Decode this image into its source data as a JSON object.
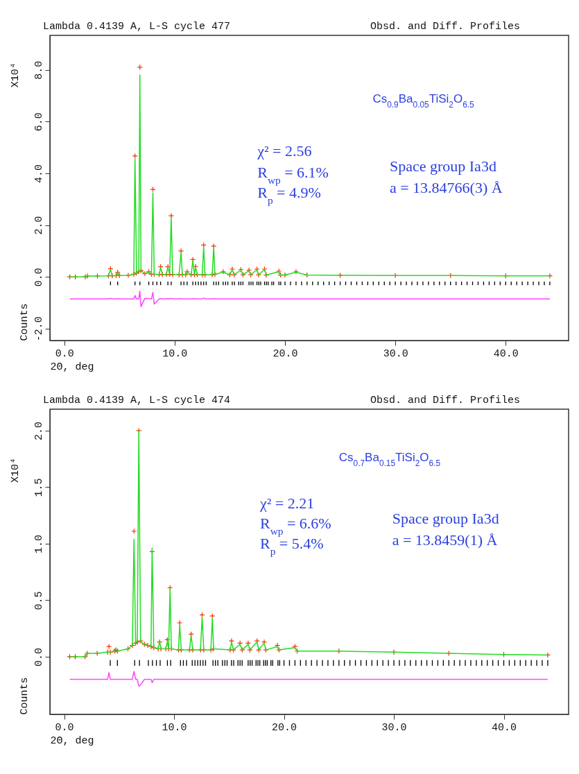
{
  "chart_data": [
    {
      "type": "line",
      "title": "Lambda 0.4139 A, L-S cycle  477",
      "subtitle": "Obsd. and Diff. Profiles",
      "xlabel": "2Θ, deg",
      "ylabel": "Counts",
      "annotations": [
        "Cs$_{0.9}$Ba$_{0.05}$TiSi$_{2}$O$_{6.5}$",
        "χ² = 2.56",
        "R$_{wp}$ = 6.1%",
        "R$_{p}$ = 4.9%",
        "Space group Ia3d",
        "a = 13.84766(3) Å",
        "X10⁴"
      ],
      "xlim": [
        -1.3,
        45.7
      ],
      "xticks": [
        {
          "value": 0,
          "label": "0.0"
        },
        {
          "value": 10,
          "label": "10.0"
        },
        {
          "value": 20,
          "label": "20.0"
        },
        {
          "value": 30,
          "label": "30.0"
        },
        {
          "value": 40,
          "label": "40.0"
        }
      ],
      "ylim": [
        -2.46,
        9.33
      ],
      "yticks": [
        {
          "value": -2,
          "label": "-2.0"
        },
        {
          "value": 0,
          "label": "0.0"
        },
        {
          "value": 2,
          "label": "2.0"
        },
        {
          "value": 4,
          "label": "4.0"
        },
        {
          "value": 6,
          "label": "6.0"
        },
        {
          "value": 8,
          "label": "8.0"
        }
      ],
      "x": [
        0.5,
        1.0,
        1.9,
        2.1,
        3.0,
        4.0,
        4.19,
        4.35,
        4.7,
        4.84,
        5.0,
        5.8,
        6.3,
        6.41,
        6.55,
        6.75,
        6.85,
        6.95,
        7.3,
        7.66,
        7.9,
        8.03,
        8.15,
        8.6,
        8.73,
        8.9,
        9.25,
        9.39,
        9.55,
        9.69,
        9.82,
        10.4,
        10.58,
        10.7,
        11.0,
        11.13,
        11.5,
        11.65,
        11.8,
        11.9,
        12.05,
        12.5,
        12.63,
        12.75,
        13.4,
        13.54,
        13.65,
        14.4,
        15.0,
        15.22,
        15.4,
        16.0,
        16.2,
        16.74,
        16.9,
        17.46,
        17.6,
        18.15,
        18.3,
        19.45,
        19.6,
        20.0,
        21.0,
        22,
        25,
        30,
        35,
        40,
        44.0
      ],
      "series": [
        {
          "type": "scatter",
          "marker": "cross",
          "color": "#ff2a00",
          "values": [
            0,
            0,
            0,
            0.03,
            0.03,
            0.04,
            0.31,
            0.04,
            0.05,
            0.18,
            0.05,
            0.06,
            0.1,
            4.67,
            0.15,
            0.2,
            8.1,
            0.25,
            0.12,
            0.2,
            0.1,
            3.38,
            0.1,
            0.09,
            0.39,
            0.09,
            0.09,
            0.39,
            0.09,
            2.36,
            0.09,
            0.08,
            1.0,
            0.08,
            0.08,
            0.2,
            0.08,
            0.67,
            0.08,
            0.4,
            0.08,
            0.08,
            1.23,
            0.08,
            0.08,
            1.19,
            0.1,
            0.2,
            0.08,
            0.3,
            0.08,
            0.28,
            0.08,
            0.26,
            0.08,
            0.3,
            0.08,
            0.3,
            0.07,
            0.22,
            0.07,
            0.07,
            0.2,
            0.07,
            0.06,
            0.05,
            0.05,
            0.04,
            0.04
          ]
        },
        {
          "type": "line",
          "line_style": "solid",
          "color": "#22dd22",
          "values": [
            0,
            0,
            0,
            0.03,
            0.03,
            0.04,
            0.28,
            0.04,
            0.05,
            0.17,
            0.05,
            0.06,
            0.1,
            4.55,
            0.14,
            0.2,
            7.8,
            0.25,
            0.12,
            0.18,
            0.1,
            3.25,
            0.1,
            0.09,
            0.36,
            0.09,
            0.09,
            0.38,
            0.09,
            2.3,
            0.09,
            0.08,
            0.95,
            0.08,
            0.08,
            0.18,
            0.08,
            0.63,
            0.08,
            0.37,
            0.08,
            0.08,
            1.15,
            0.08,
            0.08,
            1.15,
            0.1,
            0.18,
            0.08,
            0.28,
            0.08,
            0.26,
            0.08,
            0.24,
            0.08,
            0.28,
            0.08,
            0.28,
            0.07,
            0.2,
            0.07,
            0.07,
            0.18,
            0.07,
            0.06,
            0.05,
            0.05,
            0.04,
            0.04
          ]
        },
        {
          "type": "line",
          "line_style": "solid",
          "color": "#ff44ff",
          "values": [
            -0.85,
            -0.85,
            -0.85,
            -0.85,
            -0.85,
            -0.85,
            -0.83,
            -0.85,
            -0.85,
            -0.84,
            -0.85,
            -0.85,
            -0.85,
            -0.72,
            -0.85,
            -0.85,
            -0.55,
            -1.15,
            -0.83,
            -0.84,
            -0.85,
            -0.6,
            -1.05,
            -0.85,
            -0.84,
            -0.85,
            -0.85,
            -0.84,
            -0.85,
            -0.83,
            -0.85,
            -0.85,
            -0.84,
            -0.85,
            -0.85,
            -0.85,
            -0.85,
            -0.84,
            -0.85,
            -0.85,
            -0.85,
            -0.85,
            -0.82,
            -0.85,
            -0.85,
            -0.84,
            -0.85,
            -0.85,
            -0.85,
            -0.85,
            -0.85,
            -0.85,
            -0.85,
            -0.85,
            -0.85,
            -0.85,
            -0.85,
            -0.85,
            -0.85,
            -0.85,
            -0.85,
            -0.85,
            -0.85,
            -0.85,
            -0.85,
            -0.85,
            -0.85,
            -0.85,
            -0.85
          ]
        },
        {
          "type": "bar",
          "color": "#000000",
          "x": [
            4.19,
            4.84,
            6.41,
            6.85,
            7.66,
            8.03,
            8.39,
            8.73,
            9.39,
            9.69,
            10.58,
            10.84,
            11.13,
            11.65,
            11.9,
            12.15,
            12.39,
            12.63,
            12.86,
            13.54,
            13.76,
            13.98,
            14.4,
            14.62,
            14.82,
            15.22,
            15.42,
            15.81,
            16.0,
            16.19,
            16.74,
            16.92,
            17.1,
            17.46,
            17.63,
            17.8,
            18.15,
            18.32,
            18.48,
            18.81,
            18.97,
            19.45,
            19.61,
            20.0,
            20.5,
            21.0,
            21.5,
            22.0,
            22.5,
            23.0,
            23.5,
            24.0,
            24.5,
            25.0,
            25.5,
            26.0,
            26.5,
            27.0,
            27.5,
            28.0,
            28.5,
            29.0,
            29.5,
            30.0,
            30.5,
            31.0,
            31.5,
            32.0,
            32.5,
            33.0,
            33.5,
            34.0,
            34.5,
            35.0,
            35.5,
            36.0,
            36.5,
            37.0,
            37.5,
            38.0,
            38.5,
            39.0,
            39.5,
            40.0,
            40.5,
            41.0,
            41.5,
            42.0,
            42.5,
            43.0,
            43.5,
            44.0
          ],
          "base": [
            -0.32,
            -0.32,
            -0.32,
            -0.32,
            -0.32,
            -0.32,
            -0.32,
            -0.32,
            -0.32,
            -0.32,
            -0.32,
            -0.32,
            -0.32,
            -0.32,
            -0.32,
            -0.32,
            -0.32,
            -0.32,
            -0.32,
            -0.32,
            -0.32,
            -0.32,
            -0.32,
            -0.32,
            -0.32,
            -0.32,
            -0.32,
            -0.32,
            -0.32,
            -0.32,
            -0.32,
            -0.32,
            -0.32,
            -0.32,
            -0.32,
            -0.32,
            -0.32,
            -0.32,
            -0.32,
            -0.32,
            -0.32,
            -0.32,
            -0.32,
            -0.32,
            -0.32,
            -0.32,
            -0.32,
            -0.32,
            -0.32,
            -0.32,
            -0.32,
            -0.32,
            -0.32,
            -0.32,
            -0.32,
            -0.32,
            -0.32,
            -0.32,
            -0.32,
            -0.32,
            -0.32,
            -0.32,
            -0.32,
            -0.32,
            -0.32,
            -0.32,
            -0.32,
            -0.32,
            -0.32,
            -0.32,
            -0.32,
            -0.32,
            -0.32,
            -0.32,
            -0.32,
            -0.32,
            -0.32,
            -0.32,
            -0.32,
            -0.32,
            -0.32,
            -0.32,
            -0.32,
            -0.32,
            -0.32,
            -0.32,
            -0.32,
            -0.32,
            -0.32,
            -0.32,
            -0.32,
            -0.32
          ],
          "values": [
            0.14,
            0.14,
            0.14,
            0.14,
            0.14,
            0.14,
            0.14,
            0.14,
            0.14,
            0.14,
            0.14,
            0.14,
            0.14,
            0.14,
            0.14,
            0.14,
            0.14,
            0.14,
            0.14,
            0.14,
            0.14,
            0.14,
            0.14,
            0.14,
            0.14,
            0.14,
            0.14,
            0.14,
            0.14,
            0.14,
            0.14,
            0.14,
            0.14,
            0.14,
            0.14,
            0.14,
            0.14,
            0.14,
            0.14,
            0.14,
            0.14,
            0.14,
            0.14,
            0.14,
            0.14,
            0.14,
            0.14,
            0.14,
            0.14,
            0.14,
            0.14,
            0.14,
            0.14,
            0.14,
            0.14,
            0.14,
            0.14,
            0.14,
            0.14,
            0.14,
            0.14,
            0.14,
            0.14,
            0.14,
            0.14,
            0.14,
            0.14,
            0.14,
            0.14,
            0.14,
            0.14,
            0.14,
            0.14,
            0.14,
            0.14,
            0.14,
            0.14,
            0.14,
            0.14,
            0.14,
            0.14,
            0.14,
            0.14,
            0.14,
            0.14,
            0.14,
            0.14,
            0.14,
            0.14,
            0.14,
            0.14,
            0.14
          ]
        }
      ]
    },
    {
      "type": "line",
      "title": "Lambda 0.4139 A, L-S cycle  474",
      "subtitle": "Obsd. and Diff. Profiles",
      "xlabel": "2Θ, deg",
      "ylabel": "Counts",
      "annotations": [
        "Cs$_{0.7}$Ba$_{0.15}$TiSi$_{2}$O$_{6.5}$",
        "χ² = 2.21",
        "R$_{wp}$ = 6.6%",
        "R$_{p}$ = 5.4%",
        "Space group Ia3d",
        "a = 13.8459(1) Å",
        "X10⁴"
      ],
      "xlim": [
        -1.3,
        45.9
      ],
      "xticks": [
        {
          "value": 0,
          "label": "0.0"
        },
        {
          "value": 10,
          "label": "10.0"
        },
        {
          "value": 20,
          "label": "20.0"
        },
        {
          "value": 30,
          "label": "30.0"
        },
        {
          "value": 40,
          "label": "40.0"
        }
      ],
      "ylim": [
        -0.51,
        2.19
      ],
      "yticks": [
        {
          "value": 0,
          "label": "0.0"
        },
        {
          "value": 0.5,
          "label": "0.5"
        },
        {
          "value": 1,
          "label": "1.0"
        },
        {
          "value": 1.5,
          "label": "1.5"
        },
        {
          "value": 2,
          "label": "2.0"
        }
      ],
      "x": [
        0.5,
        1.0,
        1.9,
        2.1,
        3.0,
        3.95,
        4.07,
        4.2,
        4.6,
        4.7,
        4.85,
        5.8,
        6.2,
        6.35,
        6.5,
        6.65,
        6.79,
        6.95,
        7.3,
        7.6,
        7.9,
        8.0,
        8.15,
        8.55,
        8.68,
        8.8,
        9.25,
        9.38,
        9.5,
        9.63,
        9.75,
        10.4,
        10.51,
        10.65,
        11.4,
        11.55,
        11.7,
        12.4,
        12.55,
        12.7,
        13.35,
        13.48,
        13.6,
        15.1,
        15.23,
        15.4,
        16.0,
        16.2,
        16.74,
        16.9,
        17.55,
        17.7,
        18.2,
        18.35,
        19.4,
        19.55,
        21.0,
        21.2,
        25,
        30,
        35,
        40,
        44.0
      ],
      "series": [
        {
          "type": "scatter",
          "marker": "cross",
          "color": "#ff2a00",
          "values": [
            0,
            0,
            0,
            0.03,
            0.03,
            0.04,
            0.09,
            0.04,
            0.05,
            0.06,
            0.05,
            0.07,
            0.1,
            1.11,
            0.12,
            0.13,
            2.0,
            0.14,
            0.11,
            0.1,
            0.09,
            0.93,
            0.08,
            0.07,
            0.13,
            0.07,
            0.07,
            0.15,
            0.07,
            0.61,
            0.07,
            0.06,
            0.3,
            0.06,
            0.06,
            0.2,
            0.06,
            0.06,
            0.37,
            0.06,
            0.06,
            0.36,
            0.07,
            0.06,
            0.14,
            0.06,
            0.12,
            0.06,
            0.12,
            0.06,
            0.14,
            0.06,
            0.13,
            0.06,
            0.1,
            0.06,
            0.09,
            0.05,
            0.05,
            0.04,
            0.03,
            0.02,
            0.015
          ]
        },
        {
          "type": "line",
          "line_style": "solid",
          "color": "#22dd22",
          "values": [
            0,
            0,
            0,
            0.03,
            0.03,
            0.04,
            0.04,
            0.04,
            0.05,
            0.07,
            0.05,
            0.07,
            0.1,
            1.04,
            0.12,
            0.13,
            2.0,
            0.13,
            0.11,
            0.1,
            0.09,
            0.96,
            0.08,
            0.07,
            0.14,
            0.07,
            0.07,
            0.13,
            0.07,
            0.6,
            0.07,
            0.06,
            0.28,
            0.06,
            0.06,
            0.19,
            0.06,
            0.06,
            0.35,
            0.06,
            0.06,
            0.34,
            0.07,
            0.06,
            0.13,
            0.06,
            0.11,
            0.06,
            0.11,
            0.06,
            0.13,
            0.06,
            0.12,
            0.06,
            0.09,
            0.06,
            0.08,
            0.05,
            0.05,
            0.04,
            0.03,
            0.02,
            0.015
          ]
        },
        {
          "type": "line",
          "line_style": "solid",
          "color": "#ff44ff",
          "values": [
            -0.2,
            -0.2,
            -0.2,
            -0.2,
            -0.2,
            -0.2,
            -0.14,
            -0.2,
            -0.2,
            -0.2,
            -0.2,
            -0.2,
            -0.2,
            -0.13,
            -0.2,
            -0.2,
            -0.26,
            -0.25,
            -0.2,
            -0.2,
            -0.2,
            -0.23,
            -0.2,
            -0.2,
            -0.2,
            -0.2,
            -0.2,
            -0.2,
            -0.2,
            -0.2,
            -0.2,
            -0.2,
            -0.2,
            -0.2,
            -0.2,
            -0.2,
            -0.2,
            -0.2,
            -0.2,
            -0.2,
            -0.2,
            -0.2,
            -0.2,
            -0.2,
            -0.2,
            -0.2,
            -0.2,
            -0.2,
            -0.2,
            -0.2,
            -0.2,
            -0.2,
            -0.2,
            -0.2,
            -0.2,
            -0.2,
            -0.2,
            -0.2,
            -0.2,
            -0.2,
            -0.2,
            -0.2,
            -0.2
          ]
        },
        {
          "type": "bar",
          "color": "#000000",
          "x": [
            4.19,
            4.84,
            6.41,
            6.85,
            7.66,
            8.03,
            8.39,
            8.73,
            9.39,
            9.69,
            10.58,
            10.84,
            11.13,
            11.65,
            11.9,
            12.15,
            12.39,
            12.63,
            12.86,
            13.54,
            13.76,
            13.98,
            14.4,
            14.62,
            14.82,
            15.22,
            15.42,
            15.81,
            16.0,
            16.19,
            16.74,
            16.92,
            17.1,
            17.46,
            17.63,
            17.8,
            18.15,
            18.32,
            18.48,
            18.81,
            18.97,
            19.45,
            19.61,
            20.0,
            20.5,
            21.0,
            21.5,
            22.0,
            22.5,
            23.0,
            23.5,
            24.0,
            24.5,
            25.0,
            25.5,
            26.0,
            26.5,
            27.0,
            27.5,
            28.0,
            28.5,
            29.0,
            29.5,
            30.0,
            30.5,
            31.0,
            31.5,
            32.0,
            32.5,
            33.0,
            33.5,
            34.0,
            34.5,
            35.0,
            35.5,
            36.0,
            36.5,
            37.0,
            37.5,
            38.0,
            38.5,
            39.0,
            39.5,
            40.0,
            40.5,
            41.0,
            41.5,
            42.0,
            42.5,
            43.0,
            43.5,
            44.0
          ],
          "base": [
            -0.08,
            -0.08,
            -0.08,
            -0.08,
            -0.08,
            -0.08,
            -0.08,
            -0.08,
            -0.08,
            -0.08,
            -0.08,
            -0.08,
            -0.08,
            -0.08,
            -0.08,
            -0.08,
            -0.08,
            -0.08,
            -0.08,
            -0.08,
            -0.08,
            -0.08,
            -0.08,
            -0.08,
            -0.08,
            -0.08,
            -0.08,
            -0.08,
            -0.08,
            -0.08,
            -0.08,
            -0.08,
            -0.08,
            -0.08,
            -0.08,
            -0.08,
            -0.08,
            -0.08,
            -0.08,
            -0.08,
            -0.08,
            -0.08,
            -0.08,
            -0.08,
            -0.08,
            -0.08,
            -0.08,
            -0.08,
            -0.08,
            -0.08,
            -0.08,
            -0.08,
            -0.08,
            -0.08,
            -0.08,
            -0.08,
            -0.08,
            -0.08,
            -0.08,
            -0.08,
            -0.08,
            -0.08,
            -0.08,
            -0.08,
            -0.08,
            -0.08,
            -0.08,
            -0.08,
            -0.08,
            -0.08,
            -0.08,
            -0.08,
            -0.08,
            -0.08,
            -0.08,
            -0.08,
            -0.08,
            -0.08,
            -0.08,
            -0.08,
            -0.08,
            -0.08,
            -0.08,
            -0.08,
            -0.08,
            -0.08,
            -0.08,
            -0.08,
            -0.08,
            -0.08,
            -0.08,
            -0.08
          ],
          "values": [
            0.05,
            0.05,
            0.05,
            0.05,
            0.05,
            0.05,
            0.05,
            0.05,
            0.05,
            0.05,
            0.05,
            0.05,
            0.05,
            0.05,
            0.05,
            0.05,
            0.05,
            0.05,
            0.05,
            0.05,
            0.05,
            0.05,
            0.05,
            0.05,
            0.05,
            0.05,
            0.05,
            0.05,
            0.05,
            0.05,
            0.05,
            0.05,
            0.05,
            0.05,
            0.05,
            0.05,
            0.05,
            0.05,
            0.05,
            0.05,
            0.05,
            0.05,
            0.05,
            0.05,
            0.05,
            0.05,
            0.05,
            0.05,
            0.05,
            0.05,
            0.05,
            0.05,
            0.05,
            0.05,
            0.05,
            0.05,
            0.05,
            0.05,
            0.05,
            0.05,
            0.05,
            0.05,
            0.05,
            0.05,
            0.05,
            0.05,
            0.05,
            0.05,
            0.05,
            0.05,
            0.05,
            0.05,
            0.05,
            0.05,
            0.05,
            0.05,
            0.05,
            0.05,
            0.05,
            0.05,
            0.05,
            0.05,
            0.05,
            0.05,
            0.05,
            0.05,
            0.05,
            0.05,
            0.05,
            0.05,
            0.05,
            0.05
          ]
        }
      ]
    }
  ]
}
